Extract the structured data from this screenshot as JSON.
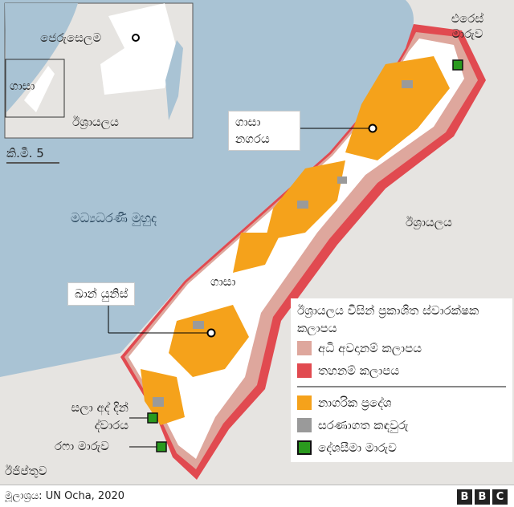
{
  "colors": {
    "sea": "#a9c3d4",
    "land": "#e6e4e1",
    "gaza": "#ffffff",
    "urban": "#f5a21b",
    "high_risk": "#dea79d",
    "no_go": "#e14a50",
    "refugee": "#9a9a9a",
    "crossing": "#2a9a1e"
  },
  "inset": {
    "jerusalem": "ජෙරුසෙලම",
    "gaza": "ගාසා",
    "israel": "ඊශ්‍රායලය"
  },
  "scale": "කි.මී. 5",
  "labels": {
    "erez": "එරෙස් මාරුව",
    "gaza_city": "ගාසා නගරය",
    "sea": "මධ්‍යධරණී මුහුද",
    "israel": "ඊශ්‍රායලය",
    "gaza": "ගාසා",
    "khan_younis": "ඛාන් යුනිස්",
    "salah": "සලා අද් දින් ද්වාරය",
    "rafah": "රෆා මාරුව",
    "egypt": "ඊජිප්තුව"
  },
  "legend": {
    "title": "ඊශ්‍රායලය විසින් ප්‍රකාශිත ස්වාරක්ෂක කලාපය",
    "items": [
      {
        "label": "අධි අවදානම් කලාපය",
        "color": "#dea79d"
      },
      {
        "label": "තහනම් කලාපය",
        "color": "#e14a50"
      },
      {
        "label": "නාගරික ප්‍රදේශ",
        "color": "#f5a21b"
      },
      {
        "label": "සරණාගත කඳවුරු",
        "color": "#9a9a9a"
      },
      {
        "label": "දේශසීමා මාරුව",
        "color": "#2a9a1e"
      }
    ]
  },
  "footer": {
    "source": "මූලාශ්‍රය: UN Ocha, 2020",
    "brand": [
      "B",
      "B",
      "C"
    ]
  }
}
